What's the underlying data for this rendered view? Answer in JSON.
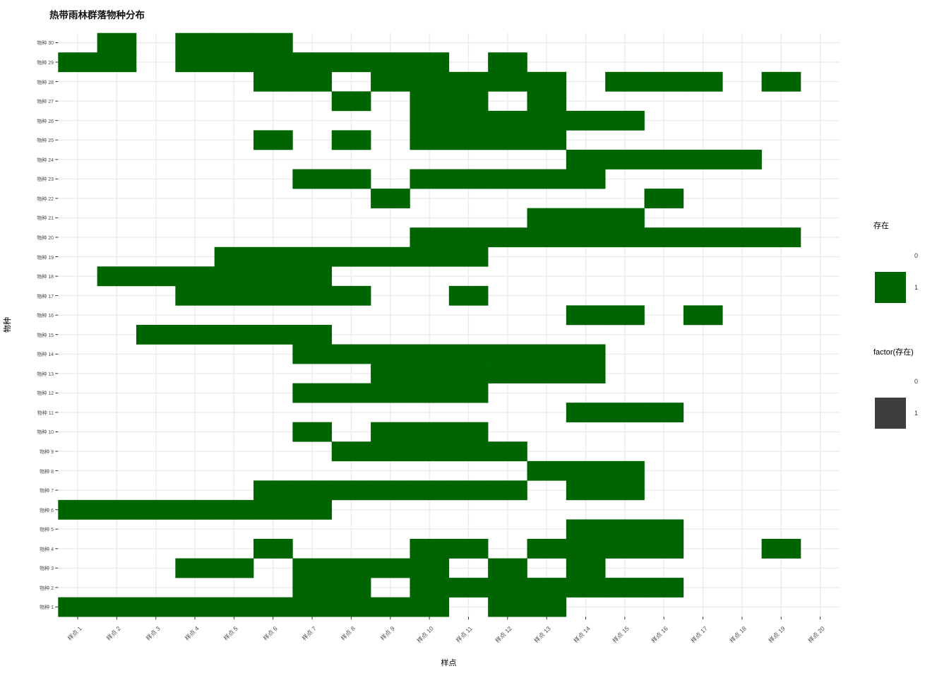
{
  "title": "热带雨林群落物种分布",
  "axes": {
    "x_title": "样点",
    "y_title": "物种"
  },
  "legends": [
    {
      "title": "存在",
      "items": [
        {
          "label": "0",
          "swatch": "none"
        },
        {
          "label": "1",
          "swatch": "#006400"
        }
      ]
    },
    {
      "title": "factor(存在)",
      "items": [
        {
          "label": "0",
          "swatch": "none"
        },
        {
          "label": "1",
          "swatch": "#3d3d3d"
        }
      ]
    }
  ],
  "colors": {
    "presence": "#006400",
    "absence": "#ffffff",
    "grid": "#ebebeb",
    "tick_mark": "#333333",
    "tick_label": "#4d4d4d"
  },
  "chart_data": {
    "type": "heatmap",
    "title": "热带雨林群落物种分布",
    "xlabel": "样点",
    "ylabel": "物种",
    "legend_title": "存在",
    "legend_values": [
      0,
      1
    ],
    "x_categories": [
      "样点 1",
      "样点 2",
      "样点 3",
      "样点 4",
      "样点 5",
      "样点 6",
      "样点 7",
      "样点 8",
      "样点 9",
      "样点 10",
      "样点 11",
      "样点 12",
      "样点 13",
      "样点 14",
      "样点 15",
      "样点 16",
      "样点 17",
      "样点 18",
      "样点 19",
      "样点 20"
    ],
    "y_categories": [
      "物种 1",
      "物种 2",
      "物种 3",
      "物种 4",
      "物种 5",
      "物种 6",
      "物种 7",
      "物种 8",
      "物种 9",
      "物种 10",
      "物种 11",
      "物种 12",
      "物种 13",
      "物种 14",
      "物种 15",
      "物种 16",
      "物种 17",
      "物种 18",
      "物种 19",
      "物种 20",
      "物种 21",
      "物种 22",
      "物种 23",
      "物种 24",
      "物种 25",
      "物种 26",
      "物种 27",
      "物种 28",
      "物种 29",
      "物种 30"
    ],
    "matrix_rows_species1_to_30_cols_site1_to_20": [
      [
        1,
        1,
        1,
        1,
        1,
        1,
        1,
        1,
        1,
        1,
        0,
        1,
        1,
        0,
        0,
        0,
        0,
        0,
        0,
        0
      ],
      [
        0,
        0,
        0,
        0,
        0,
        0,
        1,
        1,
        0,
        1,
        1,
        1,
        1,
        1,
        1,
        1,
        0,
        0,
        0,
        0
      ],
      [
        0,
        0,
        0,
        1,
        1,
        0,
        1,
        1,
        1,
        1,
        0,
        1,
        0,
        1,
        0,
        0,
        0,
        0,
        0,
        0
      ],
      [
        0,
        0,
        0,
        0,
        0,
        1,
        0,
        0,
        0,
        1,
        1,
        0,
        1,
        1,
        1,
        1,
        0,
        0,
        1,
        0
      ],
      [
        0,
        0,
        0,
        0,
        0,
        0,
        0,
        0,
        0,
        0,
        0,
        0,
        0,
        1,
        1,
        1,
        0,
        0,
        0,
        0
      ],
      [
        1,
        1,
        1,
        1,
        1,
        1,
        1,
        0,
        0,
        0,
        0,
        0,
        0,
        0,
        0,
        0,
        0,
        0,
        0,
        0
      ],
      [
        0,
        0,
        0,
        0,
        0,
        1,
        1,
        1,
        1,
        1,
        1,
        1,
        0,
        1,
        1,
        0,
        0,
        0,
        0,
        0
      ],
      [
        0,
        0,
        0,
        0,
        0,
        0,
        0,
        0,
        0,
        0,
        0,
        0,
        1,
        1,
        1,
        0,
        0,
        0,
        0,
        0
      ],
      [
        0,
        0,
        0,
        0,
        0,
        0,
        0,
        1,
        1,
        1,
        1,
        1,
        0,
        0,
        0,
        0,
        0,
        0,
        0,
        0
      ],
      [
        0,
        0,
        0,
        0,
        0,
        0,
        1,
        0,
        1,
        1,
        1,
        0,
        0,
        0,
        0,
        0,
        0,
        0,
        0,
        0
      ],
      [
        0,
        0,
        0,
        0,
        0,
        0,
        0,
        0,
        0,
        0,
        0,
        0,
        0,
        1,
        1,
        1,
        0,
        0,
        0,
        0
      ],
      [
        0,
        0,
        0,
        0,
        0,
        0,
        1,
        1,
        1,
        1,
        1,
        0,
        0,
        0,
        0,
        0,
        0,
        0,
        0,
        0
      ],
      [
        0,
        0,
        0,
        0,
        0,
        0,
        0,
        0,
        1,
        1,
        1,
        1,
        1,
        1,
        0,
        0,
        0,
        0,
        0,
        0
      ],
      [
        0,
        0,
        0,
        0,
        0,
        0,
        1,
        1,
        1,
        1,
        1,
        1,
        1,
        1,
        0,
        0,
        0,
        0,
        0,
        0
      ],
      [
        0,
        0,
        1,
        1,
        1,
        1,
        1,
        0,
        0,
        0,
        0,
        0,
        0,
        0,
        0,
        0,
        0,
        0,
        0,
        0
      ],
      [
        0,
        0,
        0,
        0,
        0,
        0,
        0,
        0,
        0,
        0,
        0,
        0,
        0,
        1,
        1,
        0,
        1,
        0,
        0,
        0
      ],
      [
        0,
        0,
        0,
        1,
        1,
        1,
        1,
        1,
        0,
        0,
        1,
        0,
        0,
        0,
        0,
        0,
        0,
        0,
        0,
        0
      ],
      [
        0,
        1,
        1,
        1,
        1,
        1,
        1,
        0,
        0,
        0,
        0,
        0,
        0,
        0,
        0,
        0,
        0,
        0,
        0,
        0
      ],
      [
        0,
        0,
        0,
        0,
        1,
        1,
        1,
        1,
        1,
        1,
        1,
        0,
        0,
        0,
        0,
        0,
        0,
        0,
        0,
        0
      ],
      [
        0,
        0,
        0,
        0,
        0,
        0,
        0,
        0,
        0,
        1,
        1,
        1,
        1,
        1,
        1,
        1,
        1,
        1,
        1,
        0
      ],
      [
        0,
        0,
        0,
        0,
        0,
        0,
        0,
        0,
        0,
        0,
        0,
        0,
        1,
        1,
        1,
        0,
        0,
        0,
        0,
        0
      ],
      [
        0,
        0,
        0,
        0,
        0,
        0,
        0,
        0,
        1,
        0,
        0,
        0,
        0,
        0,
        0,
        1,
        0,
        0,
        0,
        0
      ],
      [
        0,
        0,
        0,
        0,
        0,
        0,
        1,
        1,
        0,
        1,
        1,
        1,
        1,
        1,
        0,
        0,
        0,
        0,
        0,
        0
      ],
      [
        0,
        0,
        0,
        0,
        0,
        0,
        0,
        0,
        0,
        0,
        0,
        0,
        0,
        1,
        1,
        1,
        1,
        1,
        0,
        0
      ],
      [
        0,
        0,
        0,
        0,
        0,
        1,
        0,
        1,
        0,
        1,
        1,
        1,
        1,
        0,
        0,
        0,
        0,
        0,
        0,
        0
      ],
      [
        0,
        0,
        0,
        0,
        0,
        0,
        0,
        0,
        0,
        1,
        1,
        1,
        1,
        1,
        1,
        0,
        0,
        0,
        0,
        0
      ],
      [
        0,
        0,
        0,
        0,
        0,
        0,
        0,
        1,
        0,
        1,
        1,
        0,
        1,
        0,
        0,
        0,
        0,
        0,
        0,
        0
      ],
      [
        0,
        0,
        0,
        0,
        0,
        1,
        1,
        0,
        1,
        1,
        1,
        1,
        1,
        0,
        1,
        1,
        1,
        0,
        1,
        0
      ],
      [
        1,
        1,
        0,
        1,
        1,
        1,
        1,
        1,
        1,
        1,
        0,
        1,
        0,
        0,
        0,
        0,
        0,
        0,
        0,
        0
      ],
      [
        0,
        1,
        0,
        1,
        1,
        1,
        0,
        0,
        0,
        0,
        0,
        0,
        0,
        0,
        0,
        0,
        0,
        0,
        0,
        0
      ]
    ]
  }
}
